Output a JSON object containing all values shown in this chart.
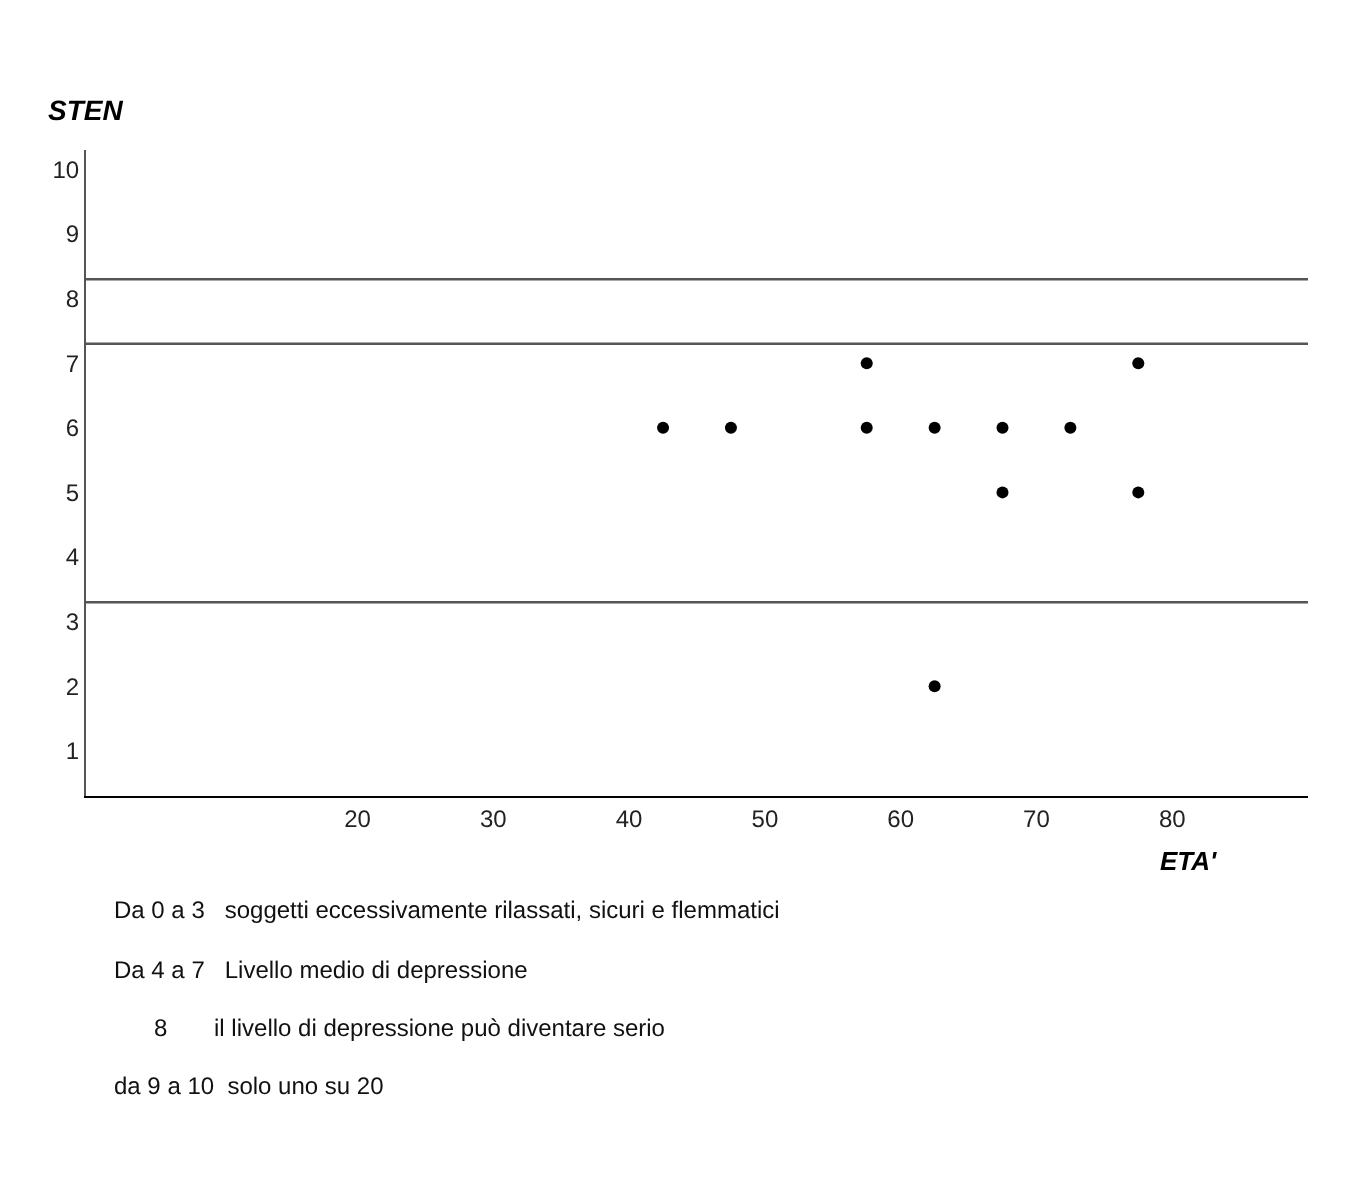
{
  "chart_data": {
    "type": "scatter",
    "ylabel": "STEN",
    "xlabel": "ETA'",
    "x": [
      42.5,
      47.5,
      57.5,
      57.5,
      62.5,
      62.5,
      67.5,
      67.5,
      72.5,
      77.5,
      77.5
    ],
    "series": [
      {
        "color": "#000000",
        "values": [
          6,
          6,
          7,
          6,
          6,
          2,
          6,
          5,
          6,
          7,
          5
        ]
      }
    ],
    "marker": "circle",
    "xlim": [
      0,
      90
    ],
    "xticks": [
      20,
      30,
      40,
      50,
      60,
      70,
      80
    ],
    "ylim": [
      0.3,
      10.3
    ],
    "yticks": [
      1,
      2,
      3,
      4,
      5,
      6,
      7,
      8,
      9,
      10
    ],
    "ref_lines": [
      {
        "axis": "y",
        "value": 8.3,
        "color": "#555555"
      },
      {
        "axis": "y",
        "value": 7.3,
        "color": "#555555"
      },
      {
        "axis": "y",
        "value": 3.3,
        "color": "#555555"
      }
    ],
    "annotations": [
      "Da 0 a 3   soggetti eccessivamente rilassati, sicuri e flemmatici",
      "Da 4 a 7   Livello medio di depressione",
      "      8       il livello di depressione può diventare serio",
      "da 9 a 10  solo uno su 20"
    ]
  }
}
